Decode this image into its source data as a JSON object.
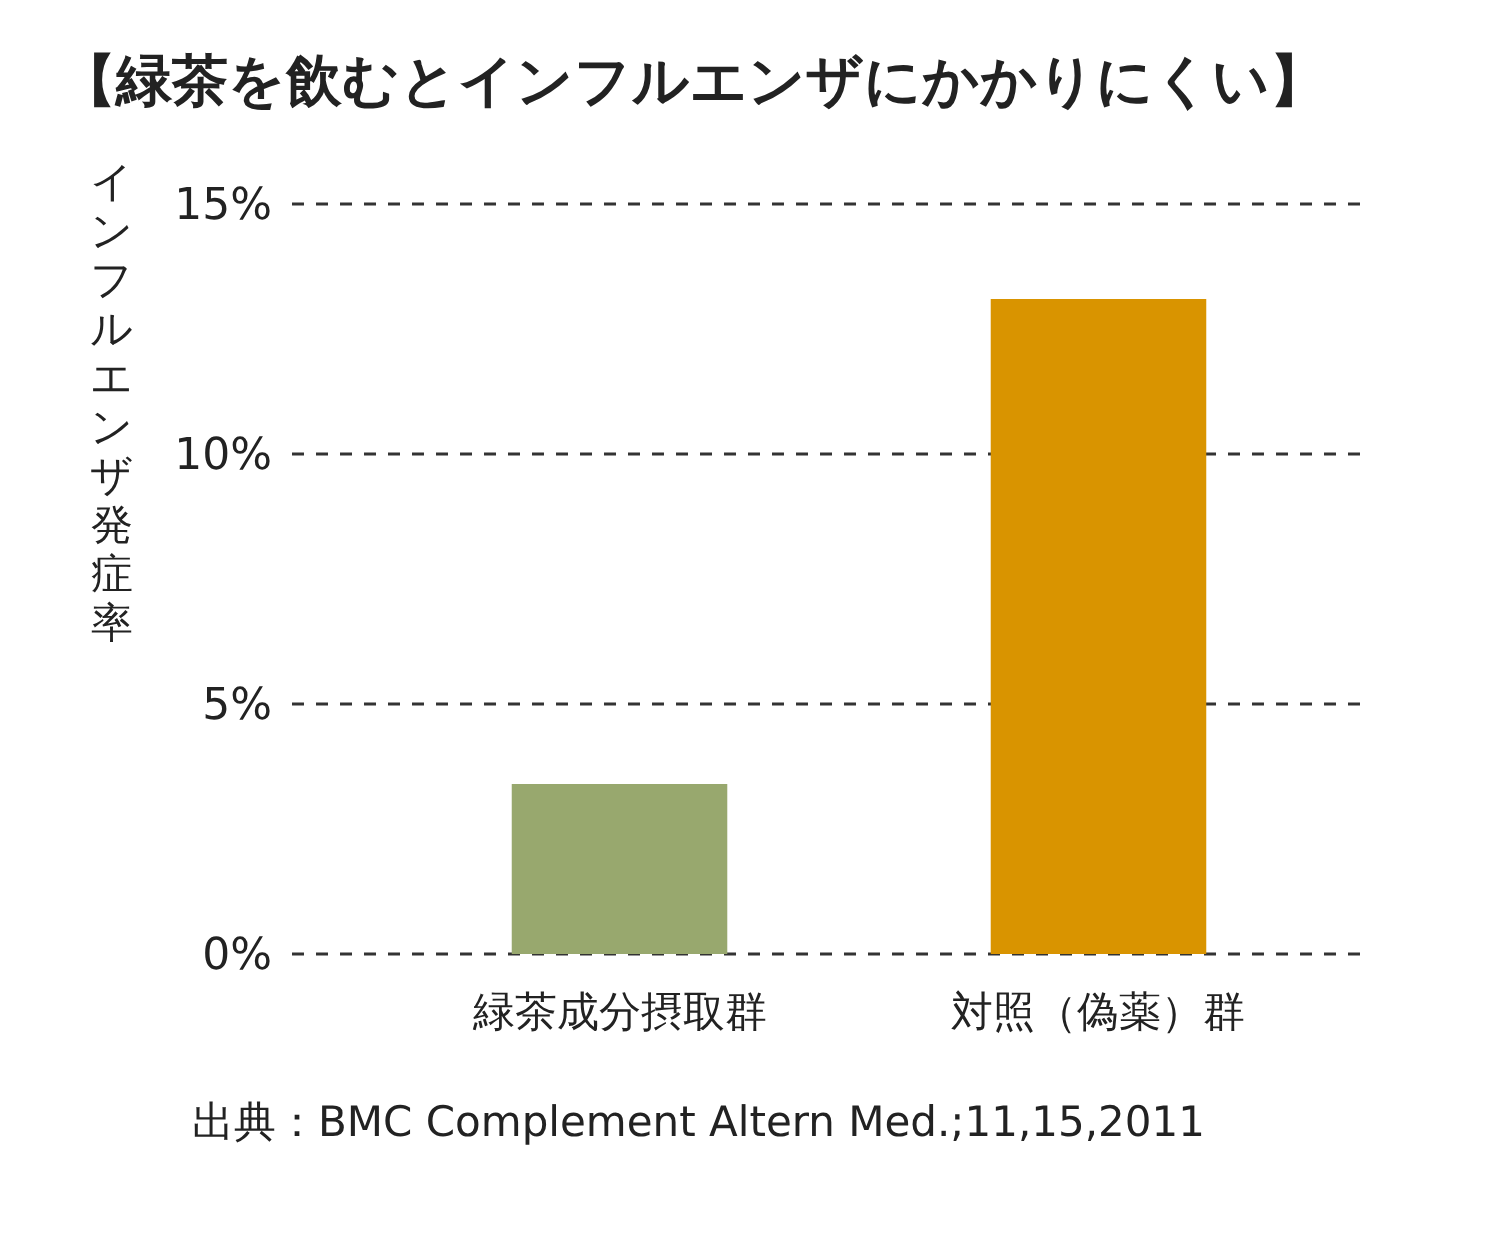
{
  "chart_data": {
    "type": "bar",
    "title": "【緑茶を飲むとインフルエンザにかかりにくい】",
    "ylabel": "インフルエンザ発症率",
    "categories": [
      "緑茶成分摂取群",
      "対照（偽薬）群"
    ],
    "values": [
      3.4,
      13.1
    ],
    "colors": [
      "#98a86e",
      "#d99400"
    ],
    "ylim": [
      0,
      15
    ],
    "yticks": [
      {
        "value": 0,
        "label": "0%"
      },
      {
        "value": 5,
        "label": "5%"
      },
      {
        "value": 10,
        "label": "10%"
      },
      {
        "value": 15,
        "label": "15%"
      }
    ],
    "grid": "y",
    "line_style": "dashed",
    "annotations": [
      "出典：BMC Complement Altern Med.;11,15,2011"
    ]
  }
}
